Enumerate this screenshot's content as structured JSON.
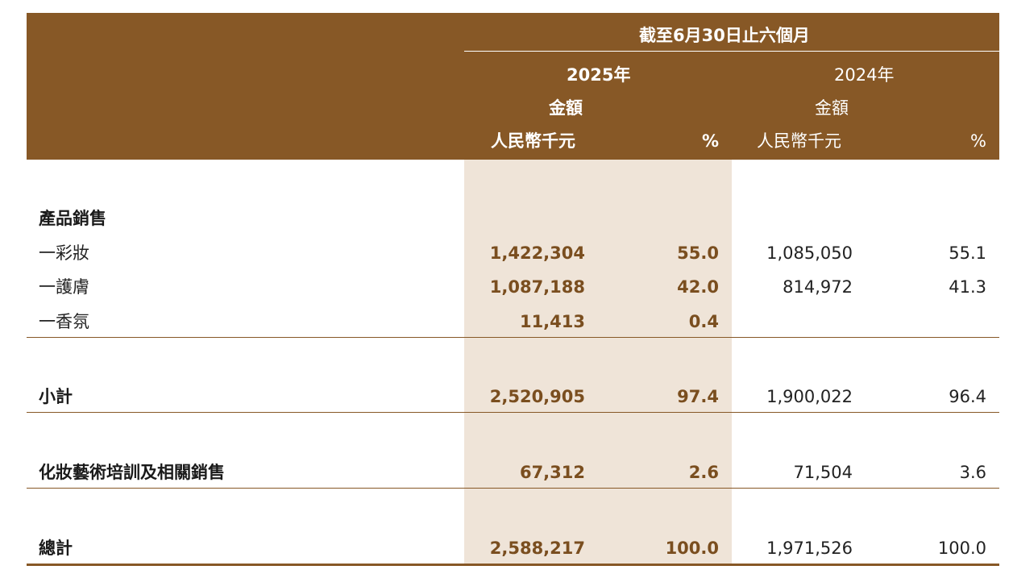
{
  "header": {
    "period": "截至6月30日止六個月",
    "year_current": "2025年",
    "year_prior": "2024年",
    "amount_label_current": "金額",
    "amount_label_prior": "金額",
    "unit_current": "人民幣千元",
    "unit_prior": "人民幣千元",
    "pct_current": "%",
    "pct_prior": "%"
  },
  "rows": [
    {
      "label": "產品銷售",
      "cur": "",
      "cur_pct": "",
      "prev": "",
      "prev_pct": ""
    },
    {
      "label": "一彩妝",
      "cur": "1,422,304",
      "cur_pct": "55.0",
      "prev": "1,085,050",
      "prev_pct": "55.1"
    },
    {
      "label": "一護膚",
      "cur": "1,087,188",
      "cur_pct": "42.0",
      "prev": "814,972",
      "prev_pct": "41.3"
    },
    {
      "label": "一香氛",
      "cur": "11,413",
      "cur_pct": "0.4",
      "prev": "",
      "prev_pct": ""
    },
    {
      "label": "小計",
      "cur": "2,520,905",
      "cur_pct": "97.4",
      "prev": "1,900,022",
      "prev_pct": "96.4"
    },
    {
      "label": "化妝藝術培訓及相關銷售",
      "cur": "67,312",
      "cur_pct": "2.6",
      "prev": "71,504",
      "prev_pct": "3.6"
    },
    {
      "label": "總計",
      "cur": "2,588,217",
      "cur_pct": "100.0",
      "prev": "1,971,526",
      "prev_pct": "100.0"
    }
  ]
}
